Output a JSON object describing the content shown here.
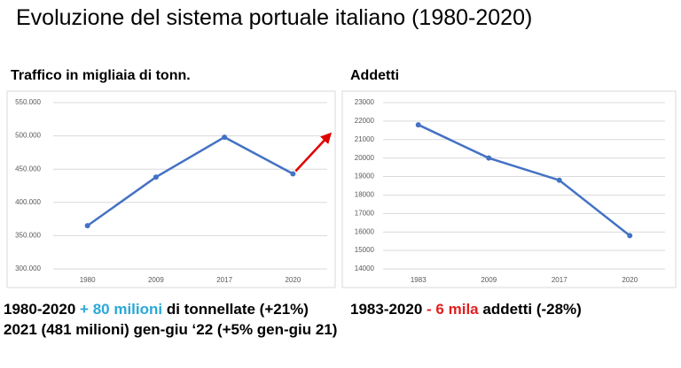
{
  "title": "Evoluzione del sistema portuale italiano (1980-2020)",
  "chart_data": [
    {
      "type": "line",
      "title": "Traffico in migliaia di tonn.",
      "categories": [
        "1980",
        "2009",
        "2017",
        "2020"
      ],
      "values": [
        365000,
        438000,
        498000,
        443000
      ],
      "color": "#4472c4",
      "ylim": [
        300000,
        550000
      ],
      "yticks": [
        {
          "value": 300000,
          "label": "300.000"
        },
        {
          "value": 350000,
          "label": "350.000"
        },
        {
          "value": 400000,
          "label": "400.000"
        },
        {
          "value": 450000,
          "label": "450.000"
        },
        {
          "value": 500000,
          "label": "500.000"
        },
        {
          "value": 550000,
          "label": "550.000"
        }
      ],
      "grid": true
    },
    {
      "type": "line",
      "title": "Addetti",
      "categories": [
        "1983",
        "2009",
        "2017",
        "2020"
      ],
      "values": [
        21800,
        20000,
        18800,
        15800
      ],
      "color": "#4472c4",
      "ylim": [
        14000,
        23000
      ],
      "yticks": [
        14000,
        15000,
        16000,
        17000,
        18000,
        19000,
        20000,
        21000,
        22000,
        23000
      ],
      "grid": true
    }
  ],
  "captions": {
    "left": [
      "1980-2020",
      "+ 80 milioni",
      "di tonnellate (+21%)",
      "2021 (481 milioni) gen-giu ‘22 (+5% gen-giu 21)"
    ],
    "right": [
      "1983-2020",
      "- 6 mila",
      "addetti (-28%)"
    ]
  }
}
